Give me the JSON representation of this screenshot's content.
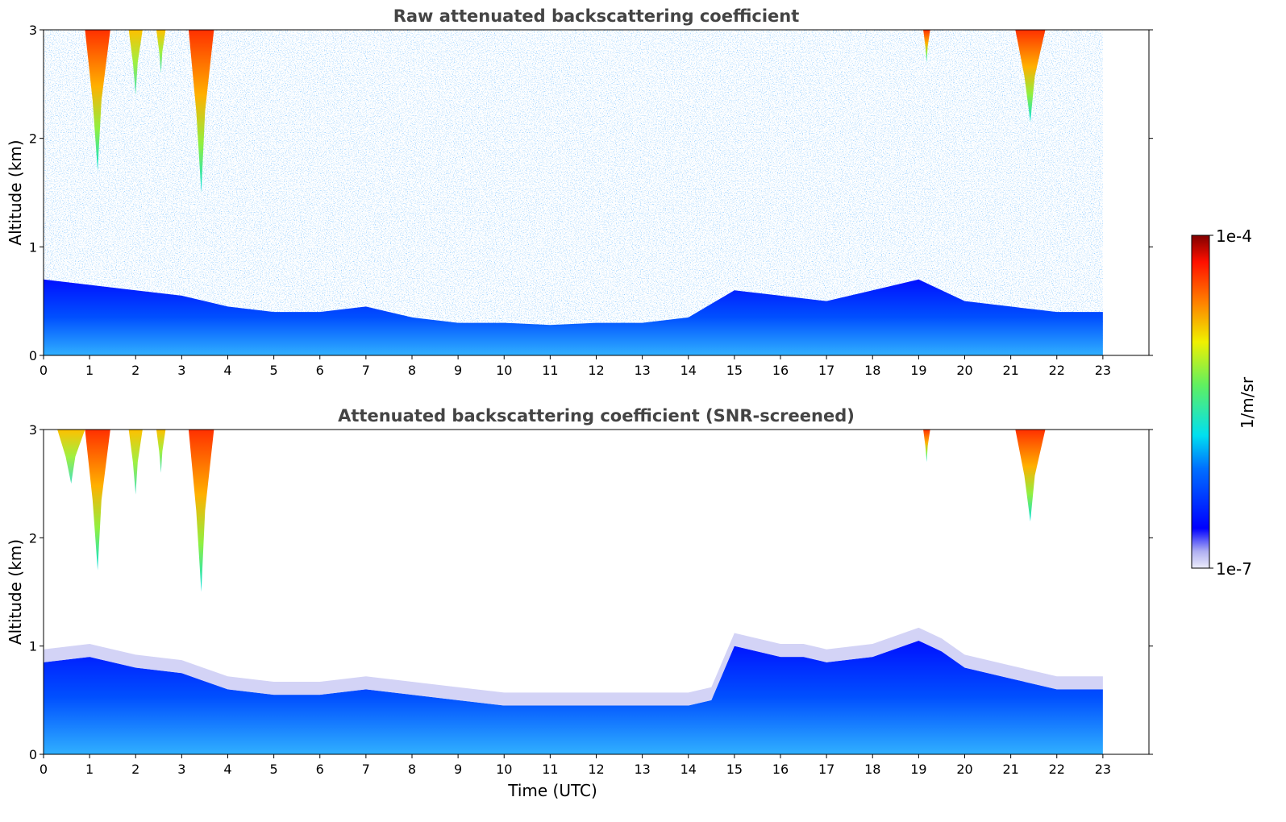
{
  "figure": {
    "colorbar": {
      "label": "1/m/sr",
      "max_label": "1e-4",
      "min_label": "1e-7",
      "scale": "log",
      "range": [
        1e-07,
        0.0001
      ],
      "colormap": "jet"
    }
  },
  "chart_data": [
    {
      "type": "heatmap",
      "title": "Raw attenuated backscattering coefficient",
      "xlabel": "",
      "ylabel": "Altitude (km)",
      "xlim": [
        0,
        24
      ],
      "ylim": [
        0,
        3
      ],
      "xticks": [
        "0",
        "1",
        "2",
        "3",
        "4",
        "5",
        "6",
        "7",
        "8",
        "9",
        "10",
        "11",
        "12",
        "13",
        "14",
        "15",
        "16",
        "17",
        "18",
        "19",
        "20",
        "21",
        "22",
        "23"
      ],
      "yticks": [
        "0",
        "1",
        "2",
        "3"
      ],
      "data_extent_x": [
        0,
        23
      ],
      "boundary_layer_top_km": {
        "x": [
          0,
          1,
          2,
          3,
          4,
          5,
          6,
          7,
          8,
          9,
          10,
          11,
          12,
          13,
          14,
          15,
          16,
          17,
          18,
          19,
          20,
          21,
          22,
          23
        ],
        "y": [
          0.7,
          0.65,
          0.6,
          0.55,
          0.45,
          0.4,
          0.4,
          0.45,
          0.35,
          0.3,
          0.3,
          0.28,
          0.3,
          0.3,
          0.35,
          0.6,
          0.55,
          0.5,
          0.6,
          0.7,
          0.5,
          0.45,
          0.4,
          0.4
        ]
      },
      "cloud_features": [
        {
          "x_start": 0.9,
          "x_end": 1.45,
          "base_km": 1.7,
          "top_km": 3.0,
          "peak": "high"
        },
        {
          "x_start": 1.85,
          "x_end": 2.15,
          "base_km": 2.4,
          "top_km": 3.0,
          "peak": "moderate"
        },
        {
          "x_start": 2.45,
          "x_end": 2.65,
          "base_km": 2.6,
          "top_km": 3.0,
          "peak": "moderate"
        },
        {
          "x_start": 3.15,
          "x_end": 3.7,
          "base_km": 1.5,
          "top_km": 3.0,
          "peak": "high"
        },
        {
          "x_start": 19.1,
          "x_end": 19.25,
          "base_km": 2.7,
          "top_km": 3.0,
          "peak": "high"
        },
        {
          "x_start": 21.1,
          "x_end": 21.75,
          "base_km": 2.15,
          "top_km": 3.0,
          "peak": "high"
        }
      ]
    },
    {
      "type": "heatmap",
      "title": "Attenuated backscattering coefficient (SNR-screened)",
      "xlabel": "Time (UTC)",
      "ylabel": "Altitude (km)",
      "xlim": [
        0,
        24
      ],
      "ylim": [
        0,
        3
      ],
      "xticks": [
        "0",
        "1",
        "2",
        "3",
        "4",
        "5",
        "6",
        "7",
        "8",
        "9",
        "10",
        "11",
        "12",
        "13",
        "14",
        "15",
        "16",
        "17",
        "18",
        "19",
        "20",
        "21",
        "22",
        "23"
      ],
      "yticks": [
        "0",
        "1",
        "2",
        "3"
      ],
      "data_extent_x": [
        0,
        23
      ],
      "boundary_layer_top_km": {
        "x": [
          0,
          1,
          2,
          3,
          4,
          5,
          6,
          7,
          8,
          9,
          10,
          11,
          12,
          13,
          14,
          14.5,
          15,
          16,
          16.5,
          17,
          18,
          19,
          19.5,
          20,
          21,
          22,
          23
        ],
        "y": [
          0.85,
          0.9,
          0.8,
          0.75,
          0.6,
          0.55,
          0.55,
          0.6,
          0.55,
          0.5,
          0.45,
          0.45,
          0.45,
          0.45,
          0.45,
          0.5,
          1.0,
          0.9,
          0.9,
          0.85,
          0.9,
          1.05,
          0.95,
          0.8,
          0.7,
          0.6,
          0.6
        ]
      },
      "cloud_features": [
        {
          "x_start": 0.3,
          "x_end": 0.9,
          "base_km": 2.5,
          "top_km": 3.0,
          "peak": "moderate"
        },
        {
          "x_start": 0.9,
          "x_end": 1.45,
          "base_km": 1.7,
          "top_km": 3.0,
          "peak": "high"
        },
        {
          "x_start": 1.85,
          "x_end": 2.15,
          "base_km": 2.4,
          "top_km": 3.0,
          "peak": "moderate"
        },
        {
          "x_start": 2.45,
          "x_end": 2.65,
          "base_km": 2.6,
          "top_km": 3.0,
          "peak": "moderate"
        },
        {
          "x_start": 3.15,
          "x_end": 3.7,
          "base_km": 1.5,
          "top_km": 3.0,
          "peak": "high"
        },
        {
          "x_start": 19.1,
          "x_end": 19.25,
          "base_km": 2.7,
          "top_km": 3.0,
          "peak": "high"
        },
        {
          "x_start": 21.1,
          "x_end": 21.75,
          "base_km": 2.15,
          "top_km": 3.0,
          "peak": "high"
        }
      ]
    }
  ]
}
